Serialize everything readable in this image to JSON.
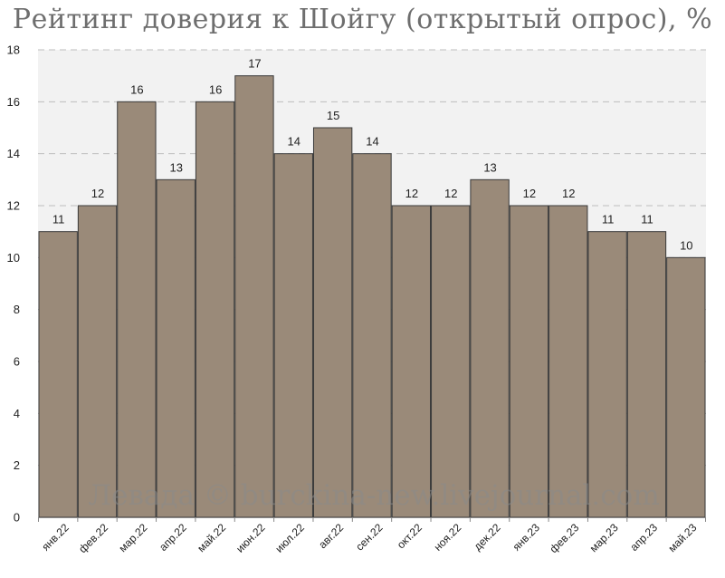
{
  "chart_data": {
    "type": "bar",
    "title": "Рейтинг доверия к Шойгу (открытый опрос), %",
    "categories": [
      "янв.22",
      "фев.22",
      "мар.22",
      "апр.22",
      "май.22",
      "июн.22",
      "июл.22",
      "авг.22",
      "сен.22",
      "окт.22",
      "ноя.22",
      "дек.22",
      "янв.23",
      "фев.23",
      "мар.23",
      "апр.23",
      "май.23"
    ],
    "values": [
      11,
      12,
      16,
      13,
      16,
      17,
      14,
      15,
      14,
      12,
      12,
      13,
      12,
      12,
      11,
      11,
      10
    ],
    "ylim": [
      0,
      18
    ],
    "yticks": [
      0,
      2,
      4,
      6,
      8,
      10,
      12,
      14,
      16,
      18
    ],
    "grid": true,
    "bar_color": "#9a8a79",
    "plot_background": "#f2f2f2"
  },
  "watermark": "Левада © burckina-new.livejournal.com"
}
